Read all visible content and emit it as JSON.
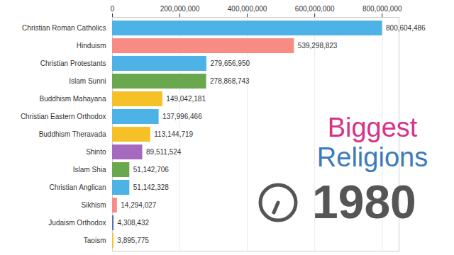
{
  "chart_data": {
    "type": "bar",
    "orientation": "horizontal",
    "title": "Biggest Religions",
    "annotations": [
      "1980"
    ],
    "categories": [
      "Christian Roman Catholics",
      "Hinduism",
      "Christian Protestants",
      "Islam Sunni",
      "Buddhism Mahayana",
      "Christian Eastern Orthodox",
      "Buddhism Theravada",
      "Shinto",
      "Islam Shia",
      "Christian Anglican",
      "Sikhism",
      "Judaism Orthodox",
      "Taoism"
    ],
    "values": [
      800604486,
      539298823,
      279656950,
      278868743,
      149042181,
      137996466,
      113144719,
      89511524,
      51142706,
      51142328,
      14294027,
      4308432,
      3895775
    ],
    "value_labels": [
      "800,604,486",
      "539,298,823",
      "279,656,950",
      "278,868,743",
      "149,042,181",
      "137,996,466",
      "113,144,719",
      "89,511,524",
      "51,142,706",
      "51,142,328",
      "14,294,027",
      "4,308,432",
      "3,895,775"
    ],
    "colors": [
      "#4db3e6",
      "#f98b85",
      "#4db3e6",
      "#6aa84f",
      "#f6c028",
      "#4db3e6",
      "#f6c028",
      "#a569bd",
      "#6aa84f",
      "#4db3e6",
      "#f98b85",
      "#5b6fa8",
      "#f6c028"
    ],
    "xlim": [
      0,
      850000000
    ],
    "xticks": [
      0,
      {
        "value": 200000000,
        "label": "200,000,000"
      },
      {
        "value": 400000000,
        "label": "400,000,000"
      },
      {
        "value": 600000000,
        "label": "600,000,000"
      },
      {
        "value": 800000000,
        "label": "800,000,000"
      }
    ],
    "grid": true,
    "data_labels": true
  }
}
